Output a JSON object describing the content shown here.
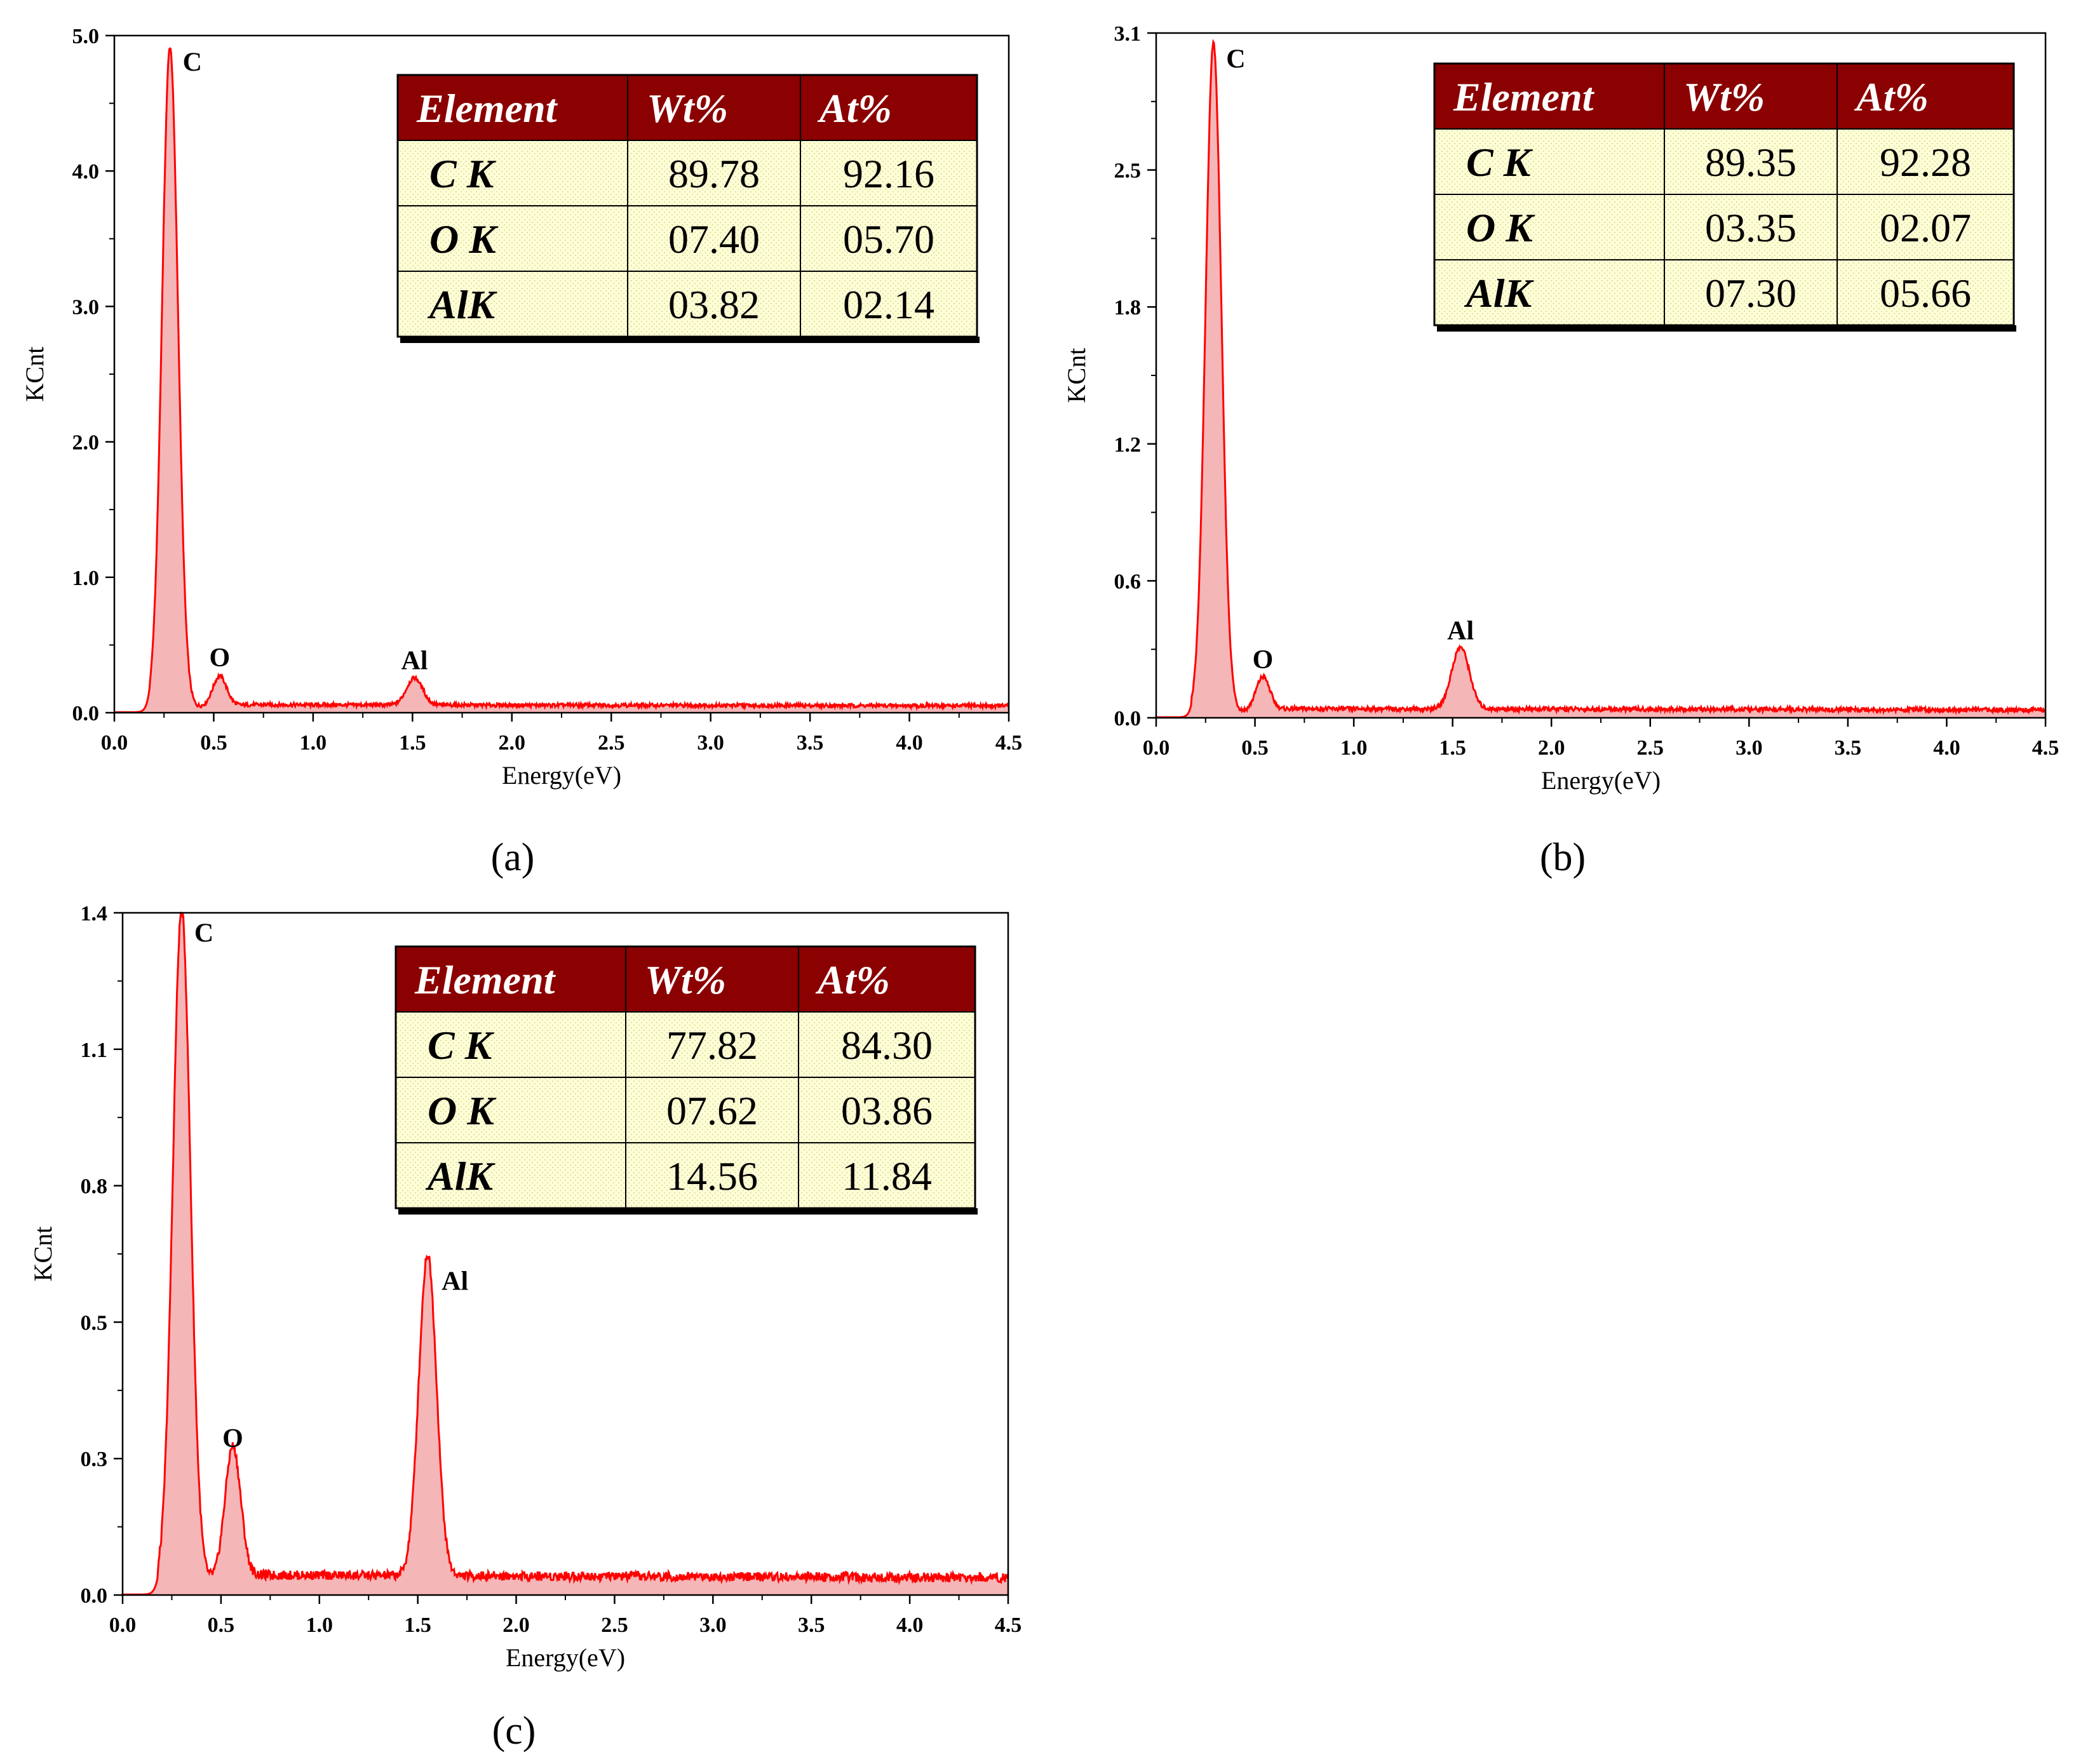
{
  "chart_data": [
    {
      "panel": "(a)",
      "type": "area",
      "xlabel": "Energy(eV)",
      "ylabel": "KCnt",
      "xlim": [
        0,
        4.5
      ],
      "ylim": [
        0,
        5.0
      ],
      "x_ticks": [
        "0.0",
        "0.5",
        "1.0",
        "1.5",
        "2.0",
        "2.5",
        "3.0",
        "3.5",
        "4.0",
        "4.5"
      ],
      "y_ticks": [
        "0.0",
        "1.0",
        "2.0",
        "3.0",
        "4.0",
        "5.0"
      ],
      "series": [
        {
          "color": "#ff0000",
          "peaks": [
            {
              "label": "C",
              "x": 0.28,
              "y": 4.88,
              "width": 0.04
            },
            {
              "label": "O",
              "x": 0.53,
              "y": 0.22,
              "width": 0.035
            },
            {
              "label": "Al",
              "x": 1.51,
              "y": 0.2,
              "width": 0.04
            }
          ],
          "background": 0.05
        }
      ],
      "table": {
        "headers": [
          "Element",
          "Wt%",
          "At%"
        ],
        "rows": [
          [
            "C K",
            "89.78",
            "92.16"
          ],
          [
            "O K",
            "07.40",
            "05.70"
          ],
          [
            "AlK",
            "03.82",
            "02.14"
          ]
        ]
      }
    },
    {
      "panel": "(b)",
      "type": "area",
      "xlabel": "Energy(eV)",
      "ylabel": "KCnt",
      "xlim": [
        0,
        4.5
      ],
      "ylim": [
        0,
        3.1
      ],
      "x_ticks": [
        "0.0",
        "0.5",
        "1.0",
        "1.5",
        "2.0",
        "2.5",
        "3.0",
        "3.5",
        "4.0",
        "4.5"
      ],
      "y_ticks": [
        "0.0",
        "0.6",
        "1.2",
        "1.8",
        "2.5",
        "3.1"
      ],
      "series": [
        {
          "color": "#ff0000",
          "peaks": [
            {
              "label": "C",
              "x": 0.29,
              "y": 3.03,
              "width": 0.04
            },
            {
              "label": "O",
              "x": 0.54,
              "y": 0.15,
              "width": 0.035
            },
            {
              "label": "Al",
              "x": 1.54,
              "y": 0.28,
              "width": 0.045
            }
          ],
          "background": 0.035
        }
      ],
      "table": {
        "headers": [
          "Element",
          "Wt%",
          "At%"
        ],
        "rows": [
          [
            "C K",
            "89.35",
            "92.28"
          ],
          [
            "O K",
            "03.35",
            "02.07"
          ],
          [
            "AlK",
            "07.30",
            "05.66"
          ]
        ]
      }
    },
    {
      "panel": "(c)",
      "type": "area",
      "xlabel": "Energy(eV)",
      "ylabel": "KCnt",
      "xlim": [
        0,
        4.5
      ],
      "ylim": [
        0,
        1.4
      ],
      "x_ticks": [
        "0.0",
        "0.5",
        "1.0",
        "1.5",
        "2.0",
        "2.5",
        "3.0",
        "3.5",
        "4.0",
        "4.5"
      ],
      "y_ticks": [
        "0.0",
        "0.3",
        "0.5",
        "0.8",
        "1.1",
        "1.4"
      ],
      "series": [
        {
          "color": "#ff0000",
          "peaks": [
            {
              "label": "C",
              "x": 0.3,
              "y": 1.38,
              "width": 0.045
            },
            {
              "label": "O",
              "x": 0.56,
              "y": 0.27,
              "width": 0.04
            },
            {
              "label": "Al",
              "x": 1.55,
              "y": 0.66,
              "width": 0.045
            }
          ],
          "background": 0.035
        }
      ],
      "table": {
        "headers": [
          "Element",
          "Wt%",
          "At%"
        ],
        "rows": [
          [
            "C K",
            "77.82",
            "84.30"
          ],
          [
            "O K",
            "07.62",
            "03.86"
          ],
          [
            "AlK",
            "14.56",
            "11.84"
          ]
        ]
      }
    }
  ]
}
